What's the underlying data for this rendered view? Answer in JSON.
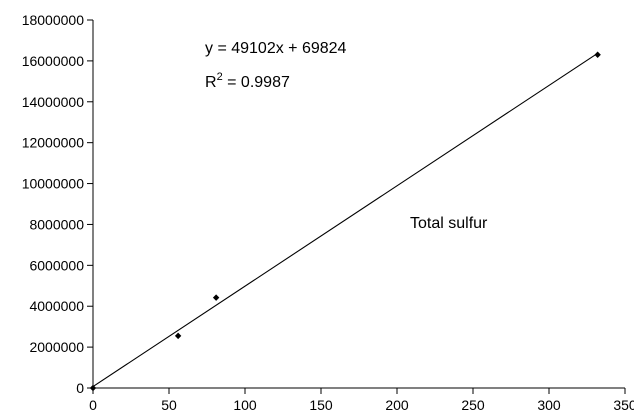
{
  "chart_data": {
    "type": "scatter",
    "title": "",
    "xlabel": "",
    "ylabel": "",
    "xlim": [
      0,
      350
    ],
    "ylim": [
      0,
      18000000
    ],
    "x_ticks": [
      0,
      50,
      100,
      150,
      200,
      250,
      300,
      350
    ],
    "y_ticks": [
      0,
      2000000,
      4000000,
      6000000,
      8000000,
      10000000,
      12000000,
      14000000,
      16000000,
      18000000
    ],
    "grid": false,
    "series": [
      {
        "points": [
          {
            "x": 0,
            "y": 0
          },
          {
            "x": 56,
            "y": 2550000
          },
          {
            "x": 81,
            "y": 4420000
          },
          {
            "x": 332,
            "y": 16300000
          }
        ]
      }
    ],
    "trendline": {
      "slope": 49102,
      "intercept": 69824,
      "x_range": [
        0,
        332
      ]
    },
    "annotations": {
      "equation": "y = 49102x + 69824",
      "r_squared_prefix": "R",
      "r_squared_sup": "2",
      "r_squared_value": " = 0.9987",
      "series_label": "Total sulfur"
    }
  }
}
